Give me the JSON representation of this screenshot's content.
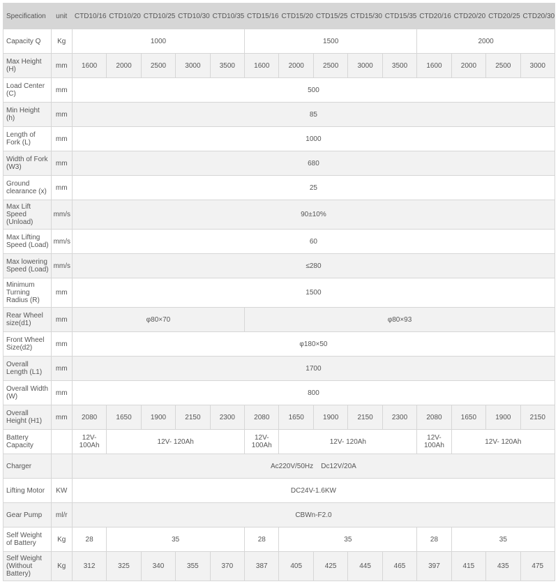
{
  "headers": [
    "Specification",
    "unit",
    "CTD10/16",
    "CTD10/20",
    "CTD10/25",
    "CTD10/30",
    "CTD10/35",
    "CTD15/16",
    "CTD15/20",
    "CTD15/25",
    "CTD15/30",
    "CTD15/35",
    "CTD20/16",
    "CTD20/20",
    "CTD20/25",
    "CTD20/30"
  ],
  "rows": [
    {
      "spec": "Capacity Q",
      "unit": "Kg",
      "cells": [
        {
          "span": 5,
          "val": "1000"
        },
        {
          "span": 5,
          "val": "1500"
        },
        {
          "span": 4,
          "val": "2000"
        }
      ]
    },
    {
      "spec": "Max Height (H)",
      "unit": "mm",
      "cells": [
        {
          "span": 1,
          "val": "1600"
        },
        {
          "span": 1,
          "val": "2000"
        },
        {
          "span": 1,
          "val": "2500"
        },
        {
          "span": 1,
          "val": "3000"
        },
        {
          "span": 1,
          "val": "3500"
        },
        {
          "span": 1,
          "val": "1600"
        },
        {
          "span": 1,
          "val": "2000"
        },
        {
          "span": 1,
          "val": "2500"
        },
        {
          "span": 1,
          "val": "3000"
        },
        {
          "span": 1,
          "val": "3500"
        },
        {
          "span": 1,
          "val": "1600"
        },
        {
          "span": 1,
          "val": "2000"
        },
        {
          "span": 1,
          "val": "2500"
        },
        {
          "span": 1,
          "val": "3000"
        }
      ]
    },
    {
      "spec": "Load Center (C)",
      "unit": "mm",
      "cells": [
        {
          "span": 14,
          "val": "500"
        }
      ]
    },
    {
      "spec": "Min Height (h)",
      "unit": "mm",
      "cells": [
        {
          "span": 14,
          "val": "85"
        }
      ]
    },
    {
      "spec": "Length of Fork (L)",
      "unit": "mm",
      "cells": [
        {
          "span": 14,
          "val": "1000"
        }
      ]
    },
    {
      "spec": " Width of Fork (W3)",
      "unit": "mm",
      "cells": [
        {
          "span": 14,
          "val": "680"
        }
      ]
    },
    {
      "spec": "Ground clearance (x)",
      "unit": "mm",
      "cells": [
        {
          "span": 14,
          "val": "25"
        }
      ]
    },
    {
      "spec": "Max Lift Speed (Unload)",
      "unit": "mm/s",
      "cells": [
        {
          "span": 14,
          "val": "90±10%"
        }
      ]
    },
    {
      "spec": "Max Lifting Speed (Load)",
      "unit": "mm/s",
      "cells": [
        {
          "span": 14,
          "val": "60"
        }
      ]
    },
    {
      "spec": "Max lowering Speed (Load)",
      "unit": "mm/s",
      "cells": [
        {
          "span": 14,
          "val": "≤280"
        }
      ]
    },
    {
      "spec": "Minimum Turning Radius (R)",
      "unit": "mm",
      "cells": [
        {
          "span": 14,
          "val": "1500"
        }
      ]
    },
    {
      "spec": "Rear Wheel size(d1)",
      "unit": "mm",
      "cells": [
        {
          "span": 5,
          "val": "φ80×70"
        },
        {
          "span": 9,
          "val": "φ80×93"
        }
      ]
    },
    {
      "spec": "Front Wheel Size(d2)",
      "unit": "mm",
      "cells": [
        {
          "span": 14,
          "val": "φ180×50"
        }
      ]
    },
    {
      "spec": "Overall Length (L1)",
      "unit": "mm",
      "cells": [
        {
          "span": 14,
          "val": "1700"
        }
      ]
    },
    {
      "spec": "Overall Width (W)",
      "unit": "mm",
      "cells": [
        {
          "span": 14,
          "val": "800"
        }
      ]
    },
    {
      "spec": "Overall Height (H1)",
      "unit": "mm",
      "cells": [
        {
          "span": 1,
          "val": "2080"
        },
        {
          "span": 1,
          "val": "1650"
        },
        {
          "span": 1,
          "val": "1900"
        },
        {
          "span": 1,
          "val": "2150"
        },
        {
          "span": 1,
          "val": "2300"
        },
        {
          "span": 1,
          "val": "2080"
        },
        {
          "span": 1,
          "val": "1650"
        },
        {
          "span": 1,
          "val": "1900"
        },
        {
          "span": 1,
          "val": "2150"
        },
        {
          "span": 1,
          "val": "2300"
        },
        {
          "span": 1,
          "val": "2080"
        },
        {
          "span": 1,
          "val": "1650"
        },
        {
          "span": 1,
          "val": "1900"
        },
        {
          "span": 1,
          "val": "2150"
        }
      ]
    },
    {
      "spec": "Battery Capacity",
      "unit": "",
      "cells": [
        {
          "span": 1,
          "val": "12V-100Ah"
        },
        {
          "span": 4,
          "val": "12V- 120Ah"
        },
        {
          "span": 1,
          "val": "12V-100Ah"
        },
        {
          "span": 4,
          "val": "12V- 120Ah"
        },
        {
          "span": 1,
          "val": "12V-100Ah"
        },
        {
          "span": 3,
          "val": "12V- 120Ah"
        }
      ]
    },
    {
      "spec": "Charger",
      "unit": "",
      "cells": [
        {
          "span": 14,
          "val": "Ac220V/50Hz    Dc12V/20A"
        }
      ]
    },
    {
      "spec": "Lifting Motor",
      "unit": "KW",
      "cells": [
        {
          "span": 14,
          "val": "DC24V-1.6KW"
        }
      ]
    },
    {
      "spec": "Gear Pump",
      "unit": "ml/r",
      "cells": [
        {
          "span": 14,
          "val": "CBWn-F2.0"
        }
      ]
    },
    {
      "spec": "Self Weight of Battery",
      "unit": "Kg",
      "cells": [
        {
          "span": 1,
          "val": "28"
        },
        {
          "span": 4,
          "val": "35"
        },
        {
          "span": 1,
          "val": "28"
        },
        {
          "span": 4,
          "val": "35"
        },
        {
          "span": 1,
          "val": "28"
        },
        {
          "span": 3,
          "val": "35"
        }
      ]
    },
    {
      "spec": "Self Weight (Without Battery)",
      "unit": "Kg",
      "cells": [
        {
          "span": 1,
          "val": "312"
        },
        {
          "span": 1,
          "val": "325"
        },
        {
          "span": 1,
          "val": "340"
        },
        {
          "span": 1,
          "val": "355"
        },
        {
          "span": 1,
          "val": "370"
        },
        {
          "span": 1,
          "val": "387"
        },
        {
          "span": 1,
          "val": "405"
        },
        {
          "span": 1,
          "val": "425"
        },
        {
          "span": 1,
          "val": "445"
        },
        {
          "span": 1,
          "val": "465"
        },
        {
          "span": 1,
          "val": "397"
        },
        {
          "span": 1,
          "val": "415"
        },
        {
          "span": 1,
          "val": "435"
        },
        {
          "span": 1,
          "val": "475"
        }
      ]
    }
  ]
}
